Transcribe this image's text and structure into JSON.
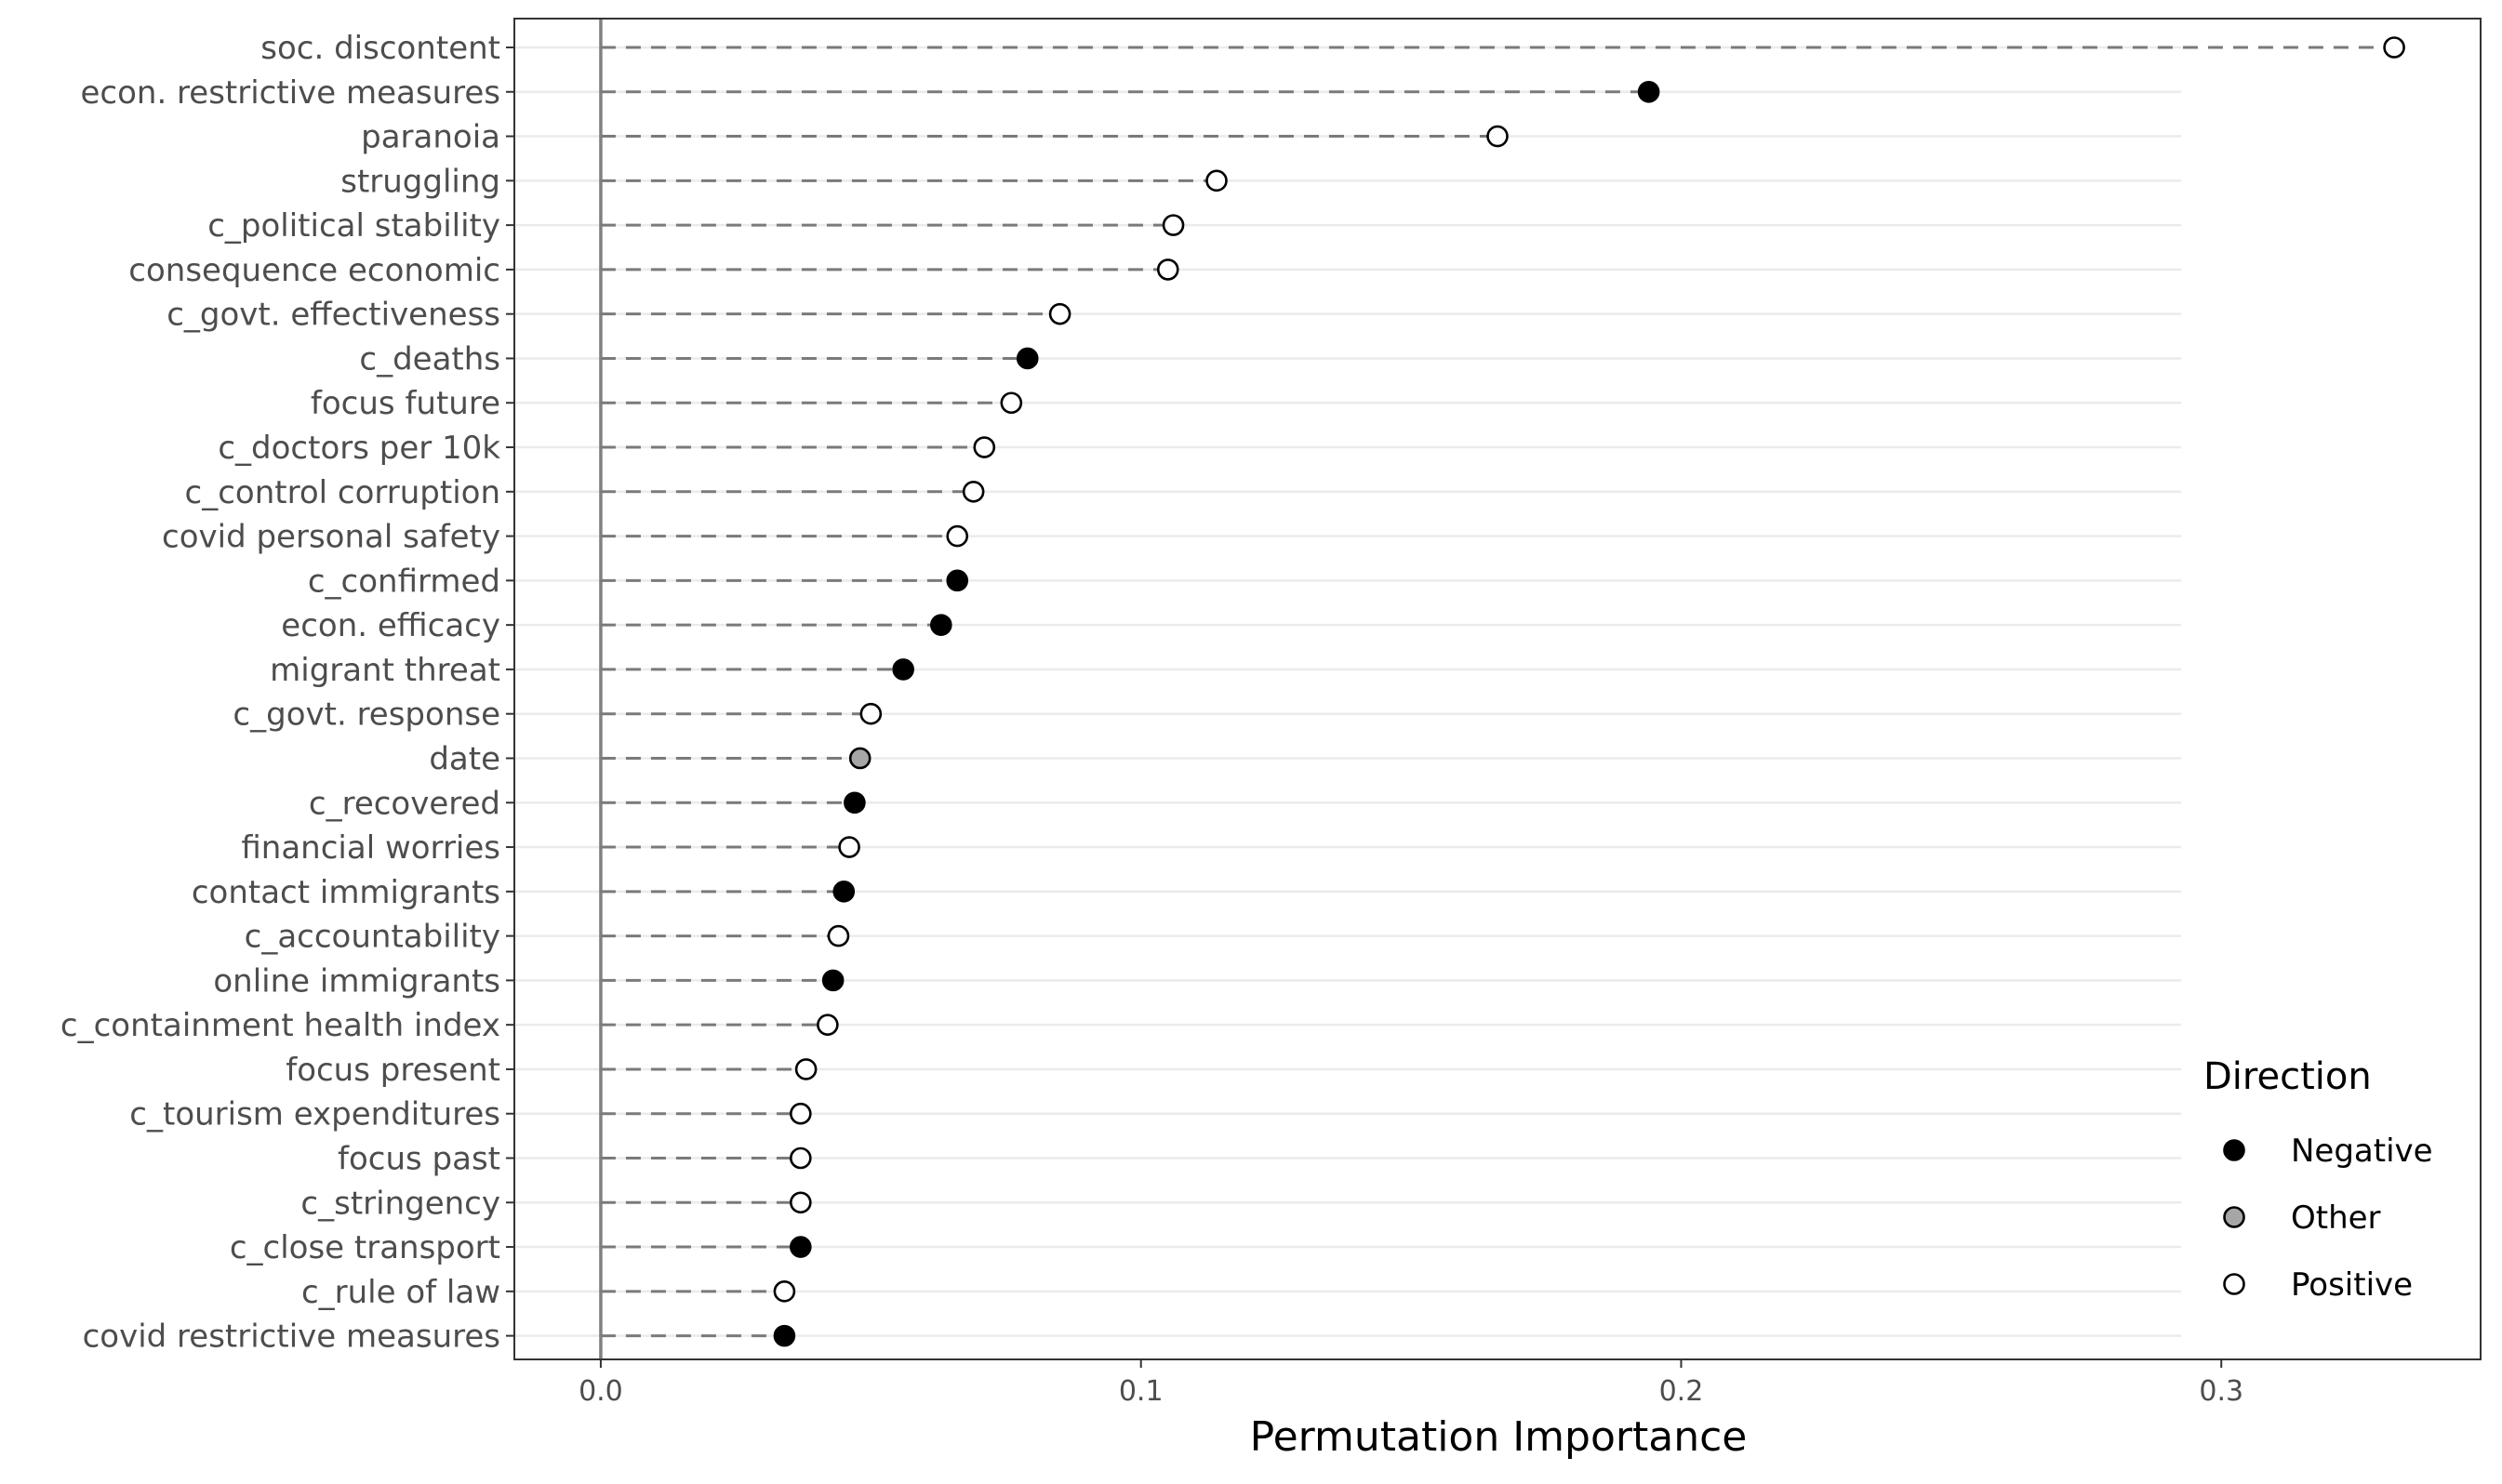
{
  "chart_data": {
    "type": "scatter",
    "style": "lollipop",
    "xlabel": "Permutation Importance",
    "ylabel": "",
    "xlim": [
      -0.016,
      0.348
    ],
    "xticks": [
      {
        "value": 0.0,
        "label": "0.0"
      },
      {
        "value": 0.1,
        "label": "0.1"
      },
      {
        "value": 0.2,
        "label": "0.2"
      },
      {
        "value": 0.3,
        "label": "0.3"
      }
    ],
    "reference_line_x": 0,
    "grid": "horizontal",
    "legend": {
      "title": "Direction",
      "placement": "bottom-right",
      "entries": [
        {
          "label": "Negative",
          "color": "#000000"
        },
        {
          "label": "Other",
          "color": "#a6a6a6"
        },
        {
          "label": "Positive",
          "color": "#ffffff"
        }
      ]
    },
    "points": [
      {
        "feature": "soc. discontent",
        "value": 0.332,
        "direction": "Positive"
      },
      {
        "feature": "econ. restrictive measures",
        "value": 0.194,
        "direction": "Negative"
      },
      {
        "feature": "paranoia",
        "value": 0.166,
        "direction": "Positive"
      },
      {
        "feature": "struggling",
        "value": 0.114,
        "direction": "Positive"
      },
      {
        "feature": "c_political stability",
        "value": 0.106,
        "direction": "Positive"
      },
      {
        "feature": "consequence economic",
        "value": 0.105,
        "direction": "Positive"
      },
      {
        "feature": "c_govt. effectiveness",
        "value": 0.085,
        "direction": "Positive"
      },
      {
        "feature": "c_deaths",
        "value": 0.079,
        "direction": "Negative"
      },
      {
        "feature": "focus future",
        "value": 0.076,
        "direction": "Positive"
      },
      {
        "feature": "c_doctors per 10k",
        "value": 0.071,
        "direction": "Positive"
      },
      {
        "feature": "c_control corruption",
        "value": 0.069,
        "direction": "Positive"
      },
      {
        "feature": "covid personal safety",
        "value": 0.066,
        "direction": "Positive"
      },
      {
        "feature": "c_confirmed",
        "value": 0.066,
        "direction": "Negative"
      },
      {
        "feature": "econ. efficacy",
        "value": 0.063,
        "direction": "Negative"
      },
      {
        "feature": "migrant threat",
        "value": 0.056,
        "direction": "Negative"
      },
      {
        "feature": "c_govt. response",
        "value": 0.05,
        "direction": "Positive"
      },
      {
        "feature": "date",
        "value": 0.048,
        "direction": "Other"
      },
      {
        "feature": "c_recovered",
        "value": 0.047,
        "direction": "Negative"
      },
      {
        "feature": "financial worries",
        "value": 0.046,
        "direction": "Positive"
      },
      {
        "feature": "contact immigrants",
        "value": 0.045,
        "direction": "Negative"
      },
      {
        "feature": "c_accountability",
        "value": 0.044,
        "direction": "Positive"
      },
      {
        "feature": "online immigrants",
        "value": 0.043,
        "direction": "Negative"
      },
      {
        "feature": "c_containment health index",
        "value": 0.042,
        "direction": "Positive"
      },
      {
        "feature": "focus present",
        "value": 0.038,
        "direction": "Positive"
      },
      {
        "feature": "c_tourism expenditures",
        "value": 0.037,
        "direction": "Positive"
      },
      {
        "feature": "focus past",
        "value": 0.037,
        "direction": "Positive"
      },
      {
        "feature": "c_stringency",
        "value": 0.037,
        "direction": "Positive"
      },
      {
        "feature": "c_close transport",
        "value": 0.037,
        "direction": "Negative"
      },
      {
        "feature": "c_rule of law",
        "value": 0.034,
        "direction": "Positive"
      },
      {
        "feature": "covid restrictive measures",
        "value": 0.034,
        "direction": "Negative"
      }
    ]
  }
}
